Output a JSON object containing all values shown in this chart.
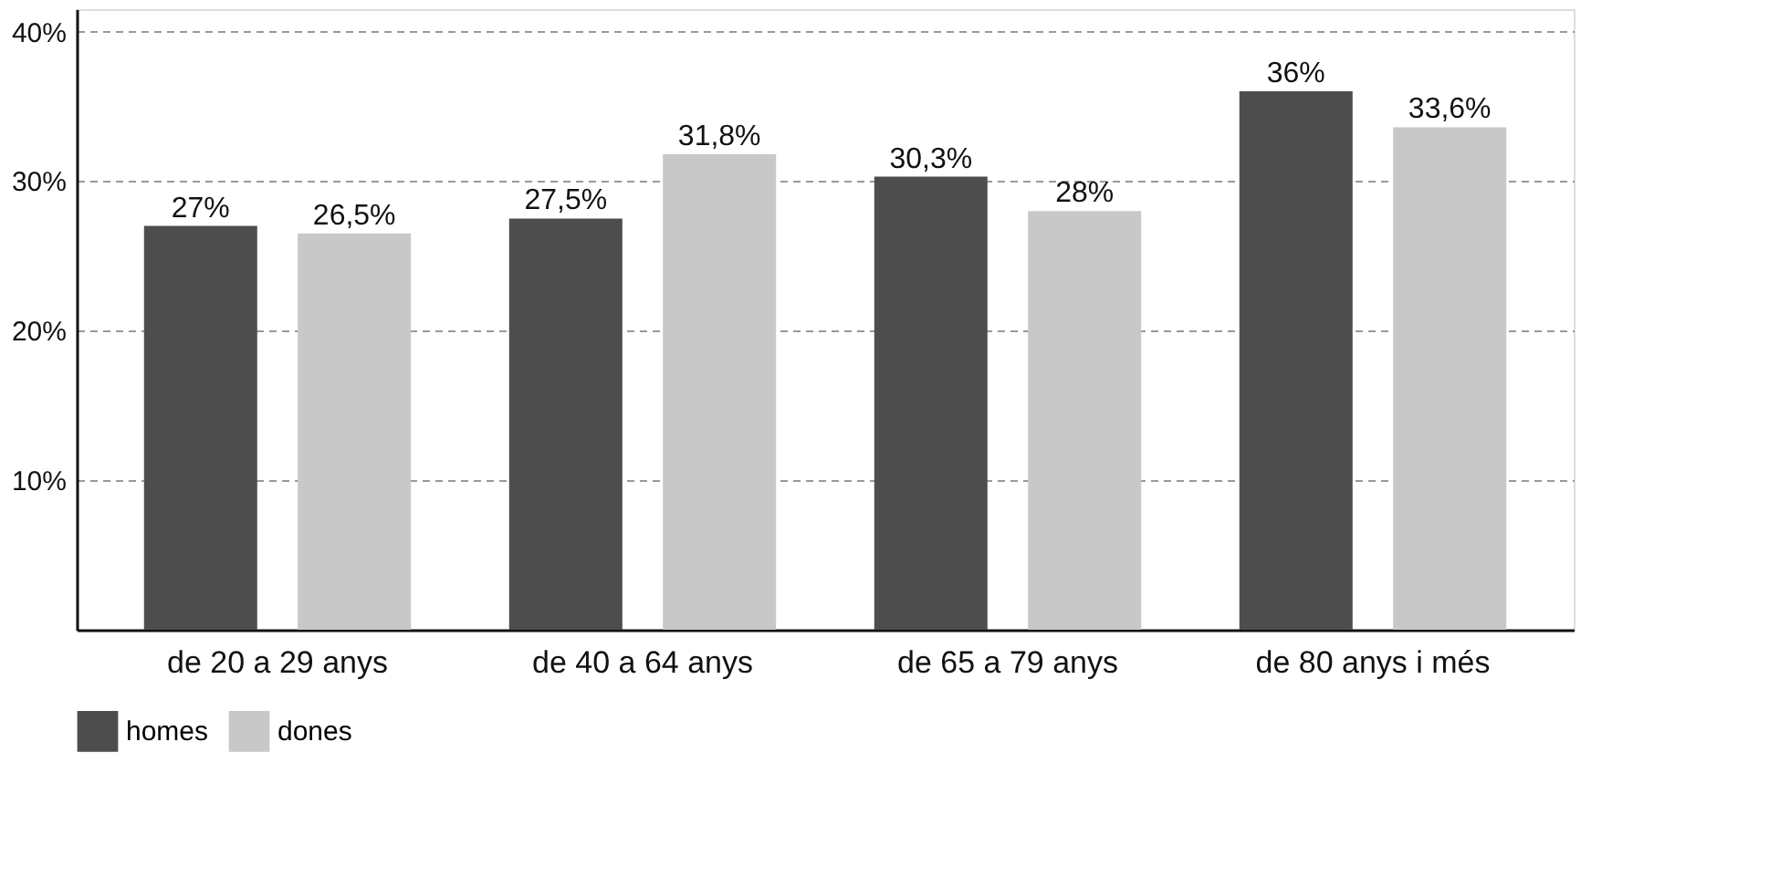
{
  "chart_data": {
    "type": "bar",
    "categories": [
      "de 20 a 29 anys",
      "de 40 a 64 anys",
      "de 65 a 79 anys",
      "de 80 anys i més"
    ],
    "series": [
      {
        "name": "homes",
        "color": "#4d4d4d",
        "values": [
          27,
          27.5,
          30.3,
          36
        ],
        "value_labels": [
          "27%",
          "27,5%",
          "30,3%",
          "36%"
        ]
      },
      {
        "name": "dones",
        "color": "#c8c8c8",
        "values": [
          26.5,
          31.8,
          28,
          33.6
        ],
        "value_labels": [
          "26,5%",
          "31,8%",
          "28%",
          "33,6%"
        ]
      }
    ],
    "ylim": [
      0,
      41.5
    ],
    "yticks": [
      {
        "value": 10,
        "label": "10%"
      },
      {
        "value": 20,
        "label": "20%"
      },
      {
        "value": 30,
        "label": "30%"
      },
      {
        "value": 40,
        "label": "40%"
      }
    ],
    "grid": "y",
    "legend": "bottom"
  }
}
